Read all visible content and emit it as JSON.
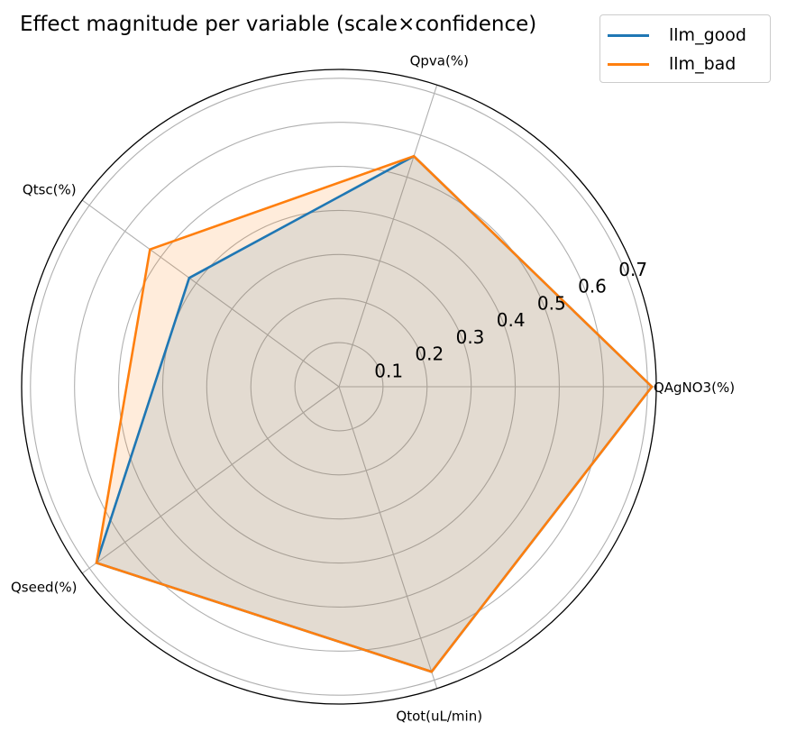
{
  "chart_data": {
    "type": "radar",
    "title": "Effect magnitude per variable (scale×confidence)",
    "categories": [
      "QAgNO3(%)",
      "Qpva(%)",
      "Qtsc(%)",
      "Qseed(%)",
      "Qtot(uL/min)"
    ],
    "radial_ticks": [
      "0.1",
      "0.2",
      "0.3",
      "0.4",
      "0.5",
      "0.6",
      "0.7"
    ],
    "rlim": [
      0,
      0.72
    ],
    "grid": true,
    "legend_position": "top-right",
    "series": [
      {
        "name": "llm_good",
        "color": "#1f77b4",
        "fill": "#1f77b4",
        "values": [
          0.71,
          0.55,
          0.42,
          0.68,
          0.68
        ]
      },
      {
        "name": "llm_bad",
        "color": "#ff7f0e",
        "fill": "#ff7f0e",
        "values": [
          0.71,
          0.55,
          0.53,
          0.68,
          0.68
        ]
      }
    ]
  }
}
